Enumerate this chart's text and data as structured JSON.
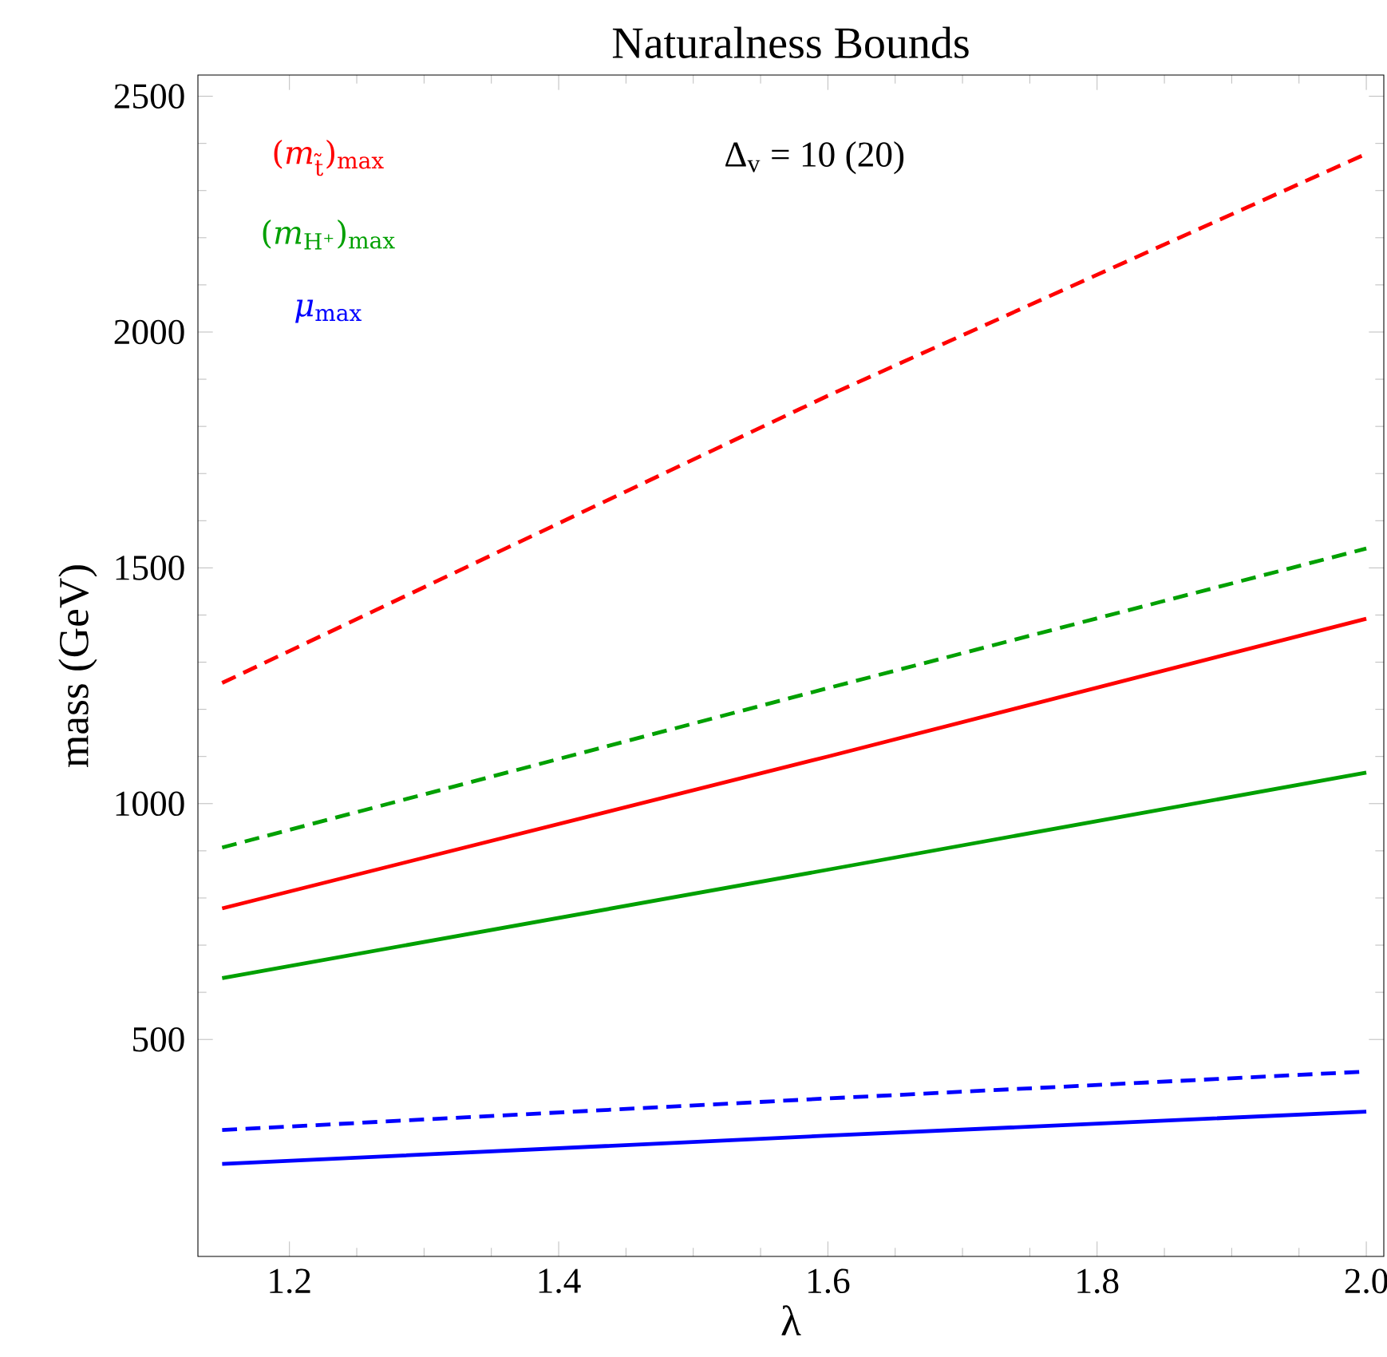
{
  "chart_data": {
    "type": "line",
    "title": "Naturalness Bounds",
    "xlabel": "λ",
    "ylabel": "mass (GeV)",
    "annotations": [
      "Δ$_{v}$ = 10 (20)"
    ],
    "legend": "top left",
    "x": [
      1.15,
      1.6,
      2.0
    ],
    "series": [
      {
        "name": "(*m*$_{t̃}$)$_{max}$",
        "color": "#ff0000",
        "line_style": "solid",
        "values": [
          778,
          1100,
          1392
        ]
      },
      {
        "color": "#ff0000",
        "line_style": "dashed",
        "values": [
          1256,
          1865,
          2378
        ]
      },
      {
        "name": "(*m*$_{H⁺}$)$_{max}$",
        "color": "#00a000",
        "line_style": "solid",
        "values": [
          630,
          860,
          1066
        ]
      },
      {
        "color": "#00a000",
        "line_style": "dashed",
        "values": [
          907,
          1245,
          1541
        ]
      },
      {
        "name": "*μ*$_{max}$",
        "color": "#0000ff",
        "line_style": "solid",
        "values": [
          236,
          296,
          347
        ]
      },
      {
        "color": "#0000ff",
        "line_style": "dashed",
        "values": [
          308,
          375,
          432
        ]
      }
    ],
    "xlim": [
      1.132,
      2.013
    ],
    "ylim": [
      40,
      2545
    ],
    "xticks": [
      1.2,
      1.4,
      1.6,
      1.8,
      {
        "value": 2.0,
        "label": "2.0"
      }
    ],
    "yticks": [
      500,
      1000,
      1500,
      2000,
      2500
    ]
  }
}
